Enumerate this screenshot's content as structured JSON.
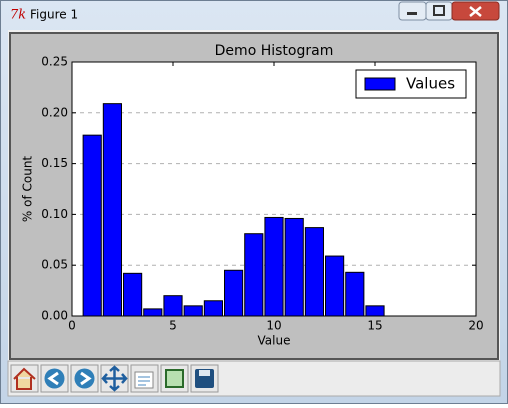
{
  "window": {
    "title": "Figure 1"
  },
  "chart_data": {
    "type": "histogram",
    "title": "Demo Histogram",
    "xlabel": "Value",
    "ylabel": "% of Count",
    "bins": [
      0.5,
      1.5,
      2.5,
      3.5,
      4.5,
      5.5,
      6.5,
      7.5,
      8.5,
      9.5,
      10.5,
      11.5,
      12.5,
      13.5,
      14.5,
      15.5
    ],
    "series": [
      {
        "name": "Values",
        "color": "#0000ff",
        "values": [
          0.178,
          0.209,
          0.042,
          0.007,
          0.02,
          0.01,
          0.015,
          0.045,
          0.081,
          0.097,
          0.096,
          0.087,
          0.059,
          0.043,
          0.01
        ]
      }
    ],
    "xlim": [
      0,
      20
    ],
    "xticks": [
      0,
      5,
      10,
      15,
      20
    ],
    "ylim": [
      0,
      0.25
    ],
    "yticks": [
      {
        "value": 0,
        "label": "0.00"
      },
      {
        "value": 0.05,
        "label": "0.05"
      },
      {
        "value": 0.1,
        "label": "0.10"
      },
      {
        "value": 0.15,
        "label": "0.15"
      },
      {
        "value": 0.2,
        "label": "0.20"
      },
      {
        "value": 0.25,
        "label": "0.25"
      }
    ],
    "grid": "y",
    "legend": "upper right"
  }
}
